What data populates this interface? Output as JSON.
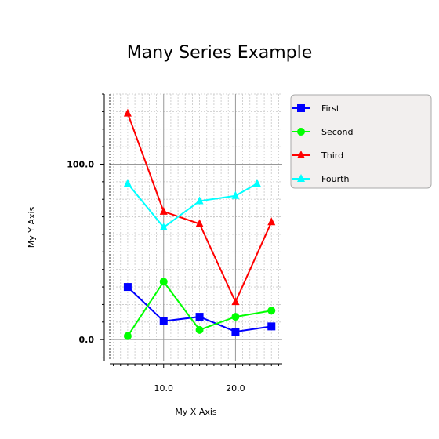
{
  "chart_data": {
    "type": "line",
    "title": "Many Series Example",
    "xlabel": "My X Axis",
    "ylabel": "My Y Axis",
    "xlim": [
      2.5,
      26.5
    ],
    "ylim": [
      -12,
      140
    ],
    "x_ticks": [
      {
        "value": 10,
        "label": "10.0"
      },
      {
        "value": 20,
        "label": "20.0"
      }
    ],
    "y_ticks": [
      {
        "value": 0,
        "label": "0.0"
      },
      {
        "value": 100,
        "label": "100.0"
      }
    ],
    "grid": true,
    "legend_position": "right",
    "series": [
      {
        "name": "First",
        "color": "#0000ff",
        "marker": "square",
        "x": [
          5,
          10,
          15,
          20,
          25
        ],
        "y": [
          30,
          10.5,
          13,
          4.5,
          7.5
        ]
      },
      {
        "name": "Second",
        "color": "#00ff00",
        "marker": "circle",
        "x": [
          5,
          10,
          15,
          20,
          25
        ],
        "y": [
          2,
          33,
          5.5,
          13,
          16.5
        ]
      },
      {
        "name": "Third",
        "color": "#ff0000",
        "marker": "triangle",
        "x": [
          5,
          10,
          15,
          20,
          25
        ],
        "y": [
          129,
          73,
          66,
          21.5,
          67
        ]
      },
      {
        "name": "Fourth",
        "color": "#00ffff",
        "marker": "triangle",
        "x": [
          5,
          10,
          15,
          20,
          23
        ],
        "y": [
          89,
          64,
          79,
          82,
          89
        ]
      }
    ]
  }
}
